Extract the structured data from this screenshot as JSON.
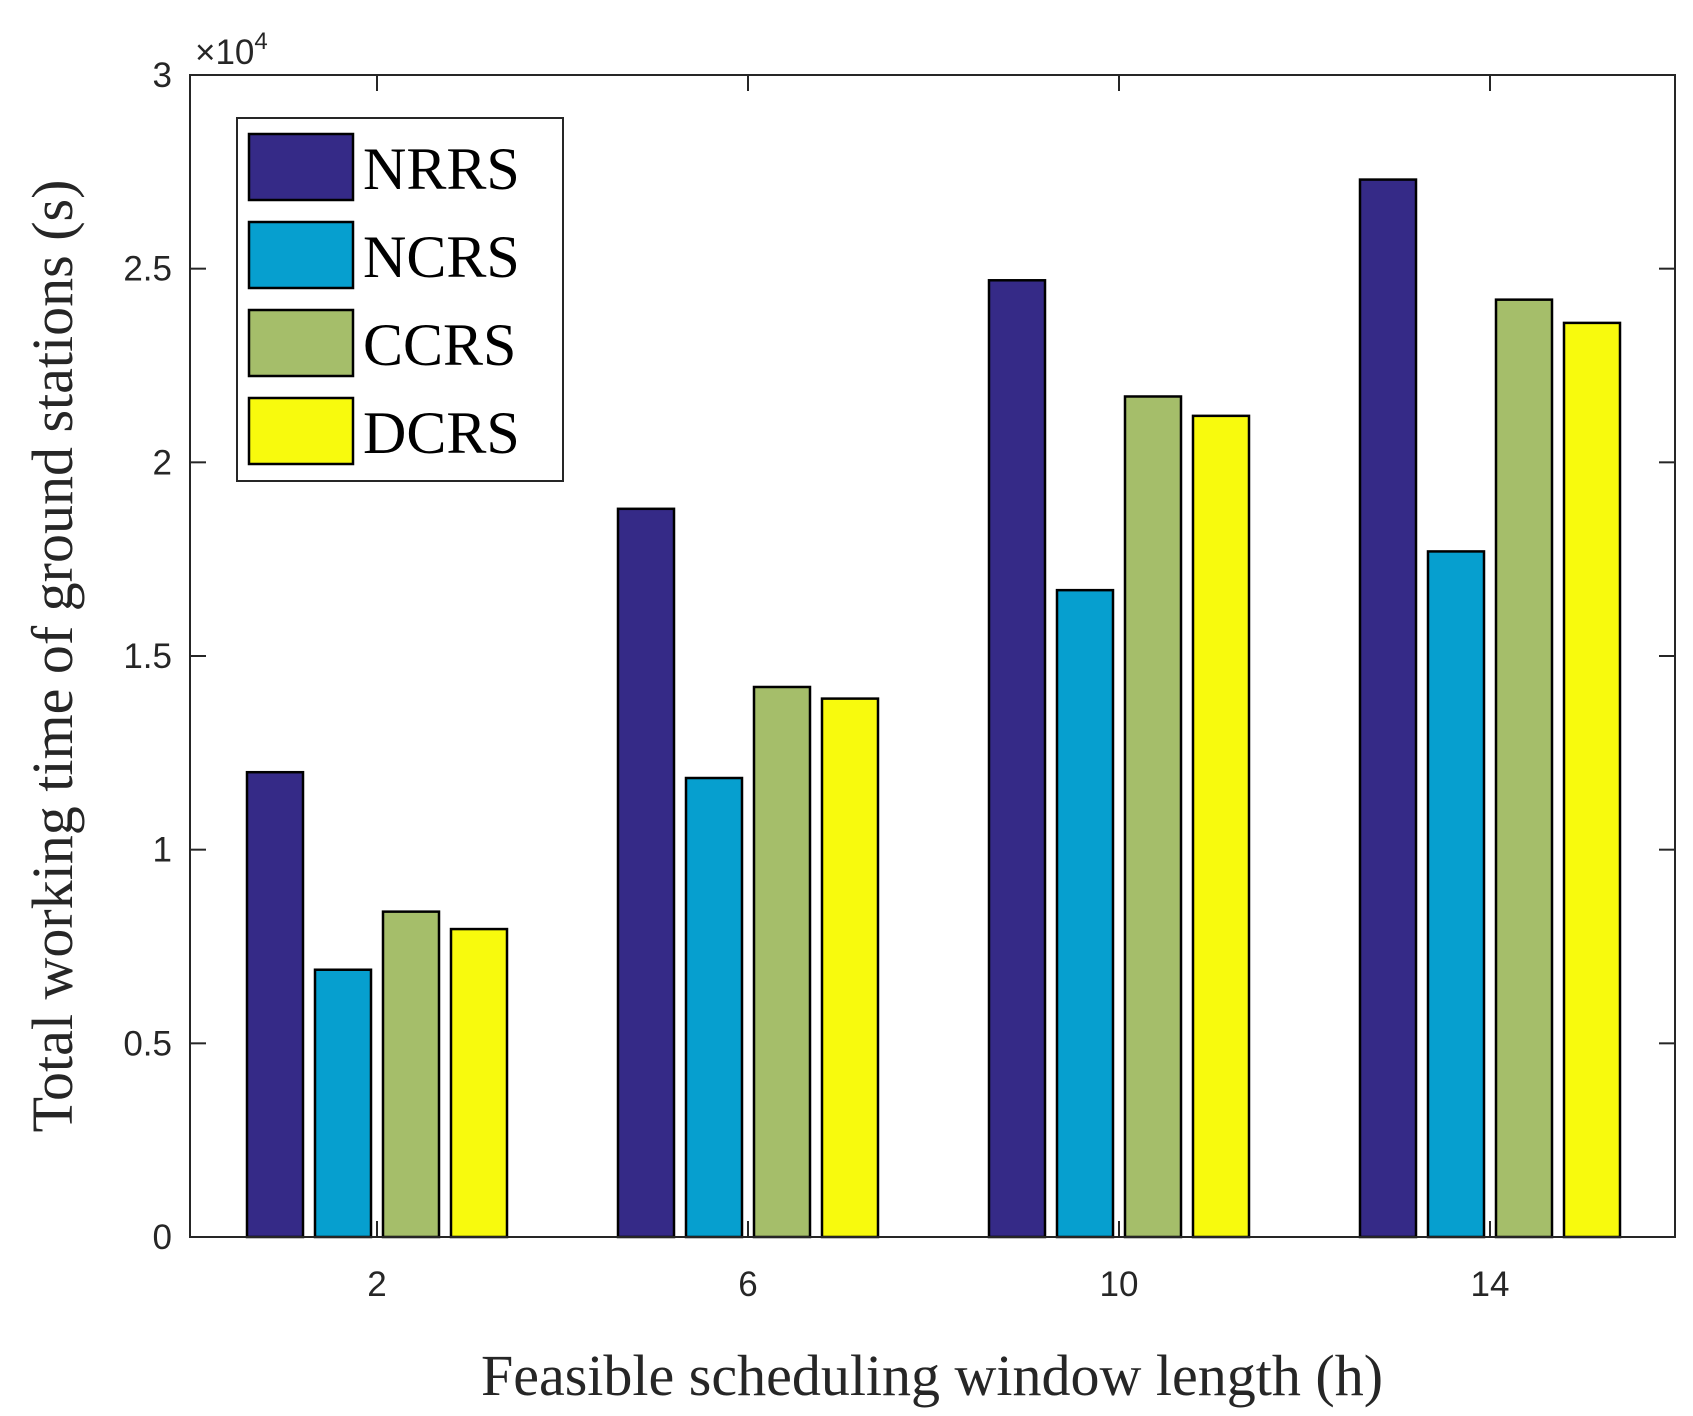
{
  "chart_data": {
    "type": "bar",
    "xlabel": "Feasible scheduling window length (h)",
    "ylabel": "Total working time of ground stations (s)",
    "y_multiplier": {
      "times": "×10",
      "exponent": "4"
    },
    "categories": [
      "2",
      "6",
      "10",
      "14"
    ],
    "ylim": [
      0,
      3
    ],
    "yticks": [
      0,
      0.5,
      1,
      1.5,
      2,
      2.5,
      3
    ],
    "ytick_labels": [
      "0",
      "0.5",
      "1",
      "1.5",
      "2",
      "2.5",
      "3"
    ],
    "series": [
      {
        "name": "NRRS",
        "color": "#352A87",
        "values": [
          1.2,
          1.88,
          2.47,
          2.73
        ]
      },
      {
        "name": "NCRS",
        "color": "#069FCF",
        "values": [
          0.69,
          1.185,
          1.67,
          1.77
        ]
      },
      {
        "name": "CCRS",
        "color": "#A5BE6A",
        "values": [
          0.84,
          1.42,
          2.17,
          2.42
        ]
      },
      {
        "name": "DCRS",
        "color": "#F8FA0D",
        "values": [
          0.795,
          1.39,
          2.12,
          2.36
        ]
      }
    ],
    "legend_position": "top-left",
    "grid": false
  }
}
